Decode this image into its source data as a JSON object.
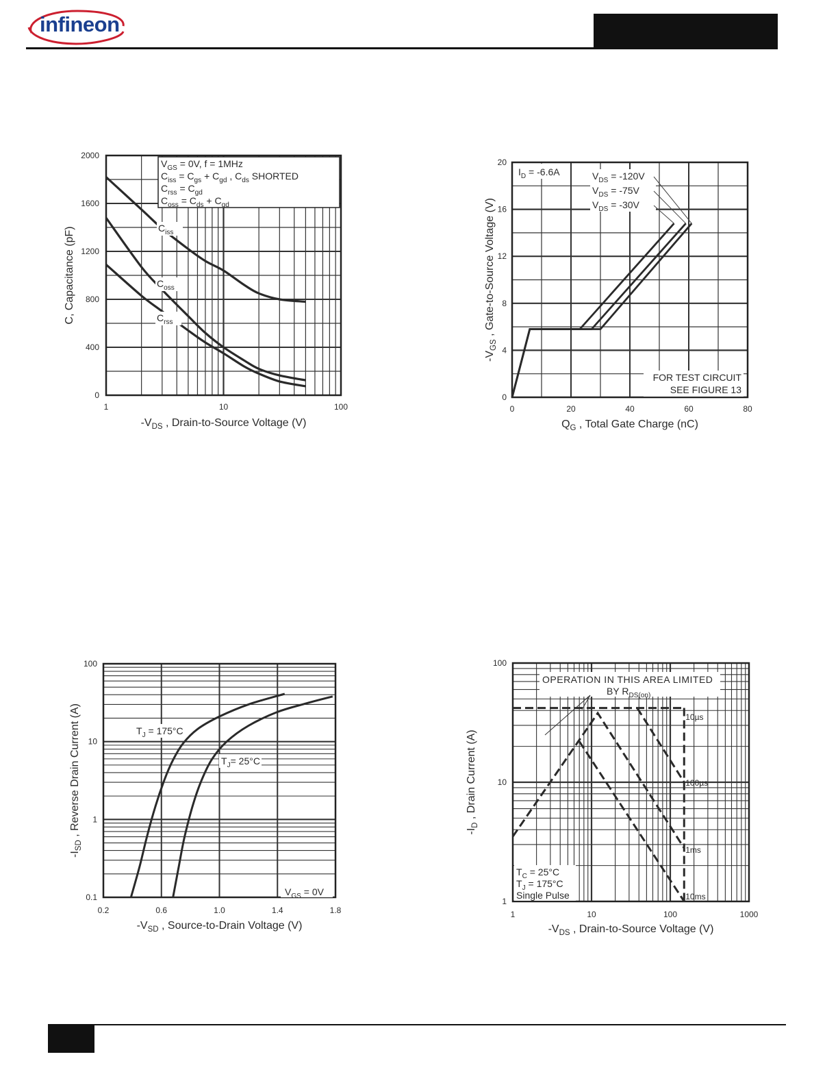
{
  "header": {
    "logo_text": "infineon"
  },
  "chart_data": [
    {
      "type": "line",
      "xscale": "log",
      "xlim": [
        1,
        100
      ],
      "ylim": [
        0,
        2000
      ],
      "xticks": [
        "1",
        "10",
        "100"
      ],
      "yticks": [
        "0",
        "400",
        "800",
        "1200",
        "1600",
        "2000"
      ],
      "ylabel_main": "C, Capacitance (pF)",
      "xlabel": {
        "prefix": "-V",
        "sub": "DS",
        "rest": " , Drain-to-Source Voltage (V)"
      },
      "legend_lines": [
        {
          "a": "V",
          "b": "GS",
          "c": " = 0V,        f = 1MHz"
        },
        {
          "a": "C",
          "b": "iss",
          "c": " = C",
          "d": "gs",
          "e": " + C",
          "f": "gd",
          "g": " ,  C",
          "h": "ds",
          "i": " SHORTED"
        },
        {
          "a": "C",
          "b": "rss",
          "c": " = C",
          "d": "gd"
        },
        {
          "a": "C",
          "b": "oss",
          "c": " = C",
          "d": "ds",
          "e": " + C",
          "f": "gd"
        }
      ],
      "series": [
        {
          "name": "Ciss",
          "label_main": "C",
          "label_sub": "iss",
          "x": [
            1,
            2,
            3,
            5,
            7,
            10,
            15,
            20,
            30,
            50
          ],
          "y": [
            1820,
            1550,
            1390,
            1220,
            1120,
            1040,
            920,
            850,
            800,
            780
          ]
        },
        {
          "name": "Coss",
          "label_main": "C",
          "label_sub": "oss",
          "x": [
            1,
            2,
            3,
            5,
            7,
            10,
            15,
            20,
            30,
            50
          ],
          "y": [
            1480,
            1070,
            880,
            660,
            520,
            400,
            290,
            220,
            165,
            125
          ]
        },
        {
          "name": "Crss",
          "label_main": "C",
          "label_sub": "rss",
          "x": [
            1,
            2,
            3,
            5,
            7,
            10,
            15,
            20,
            30,
            50
          ],
          "y": [
            1090,
            830,
            700,
            540,
            440,
            350,
            240,
            180,
            115,
            75
          ]
        }
      ]
    },
    {
      "type": "line",
      "xlim": [
        0,
        80
      ],
      "ylim": [
        0,
        20
      ],
      "xticks": [
        "0",
        "20",
        "40",
        "60",
        "80"
      ],
      "yticks": [
        "0",
        "4",
        "8",
        "12",
        "16",
        "20"
      ],
      "ylabel": {
        "prefix": "-V",
        "sub": "GS",
        "rest": " , Gate-to-Source Voltage (V)"
      },
      "xlabel": {
        "prefix": "Q",
        "sub": "G",
        "rest": " , Total Gate Charge (nC)"
      },
      "id_label": {
        "prefix": "I",
        "sub": "D",
        "rest": " = -6.6A"
      },
      "notes": [
        "FOR TEST CIRCUIT",
        "SEE FIGURE 13"
      ],
      "series": [
        {
          "name": "VDS = -120V",
          "label_main": "V",
          "label_sub": "DS",
          "label_rest": " = -120V",
          "x": [
            0,
            6,
            30,
            61
          ],
          "y": [
            0,
            5.8,
            5.8,
            14.8
          ]
        },
        {
          "name": "VDS = -75V",
          "label_main": "V",
          "label_sub": "DS",
          "label_rest": " = -75V",
          "x": [
            0,
            6,
            27,
            59
          ],
          "y": [
            0,
            5.8,
            5.8,
            14.8
          ]
        },
        {
          "name": "VDS = -30V",
          "label_main": "V",
          "label_sub": "DS",
          "label_rest": " = -30V",
          "x": [
            0,
            6,
            23,
            55
          ],
          "y": [
            0,
            5.8,
            5.8,
            14.8
          ]
        }
      ]
    },
    {
      "type": "line",
      "yscale": "log",
      "xlim": [
        0.2,
        1.8
      ],
      "ylim": [
        0.1,
        100
      ],
      "xticks": [
        "0.2",
        "0.6",
        "1.0",
        "1.4",
        "1.8"
      ],
      "yticks": [
        "0.1",
        "1",
        "10",
        "100"
      ],
      "ylabel": {
        "prefix": "-I",
        "sub": "SD",
        "rest": " , Reverse Drain Current (A)"
      },
      "xlabel": {
        "prefix": "-V",
        "sub": "SD",
        "rest": " , Source-to-Drain Voltage (V)"
      },
      "vgs_label": {
        "prefix": "V",
        "sub": "GS",
        "rest": " = 0V"
      },
      "series": [
        {
          "name": "TJ = 175°C",
          "label_main": "T",
          "label_sub": "J",
          "label_rest": " = 175°C",
          "x": [
            0.39,
            0.45,
            0.5,
            0.56,
            0.62,
            0.68,
            0.75,
            0.85,
            1.0,
            1.2,
            1.45
          ],
          "y": [
            0.1,
            0.25,
            0.6,
            1.5,
            3.2,
            5.8,
            9.5,
            14.5,
            21,
            30,
            41
          ]
        },
        {
          "name": "TJ = 25°C",
          "label_main": "T",
          "label_sub": "J",
          "label_rest": "= 25°C",
          "x": [
            0.68,
            0.72,
            0.76,
            0.82,
            0.88,
            0.95,
            1.05,
            1.2,
            1.4,
            1.6,
            1.78
          ],
          "y": [
            0.1,
            0.25,
            0.6,
            1.6,
            3.3,
            6.0,
            10,
            16,
            24,
            31,
            38
          ]
        }
      ]
    },
    {
      "type": "line",
      "xscale": "log",
      "yscale": "log",
      "xlim": [
        1,
        1000
      ],
      "ylim": [
        1,
        100
      ],
      "xticks": [
        "1",
        "10",
        "100",
        "1000"
      ],
      "yticks": [
        "1",
        "10",
        "100"
      ],
      "ylabel": {
        "prefix": "-I",
        "sub": "D",
        "rest": " , Drain Current (A)"
      },
      "xlabel": {
        "prefix": "-V",
        "sub": "DS",
        "rest": " , Drain-to-Source Voltage (V)"
      },
      "region_label": [
        "OPERATION IN THIS AREA LIMITED",
        "BY R"
      ],
      "region_sub": "DS(on)",
      "conditions": [
        {
          "a": "T",
          "b": "C",
          "c": "  = 25°C"
        },
        {
          "a": "T",
          "b": "J",
          "c": "  = 175°C"
        },
        {
          "a": "Single Pulse",
          "b": "",
          "c": ""
        }
      ],
      "series": [
        {
          "name": "10µs",
          "x": [
            1,
            150,
            150
          ],
          "y": [
            42,
            42,
            42
          ]
        },
        {
          "name": "100µs",
          "x": [
            38,
            150
          ],
          "y": [
            42,
            10
          ]
        },
        {
          "name": "1ms",
          "x": [
            1,
            12,
            150
          ],
          "y": [
            3.5,
            38,
            2.8
          ]
        },
        {
          "name": "10ms",
          "x": [
            7,
            150
          ],
          "y": [
            22,
            1
          ]
        }
      ]
    }
  ]
}
